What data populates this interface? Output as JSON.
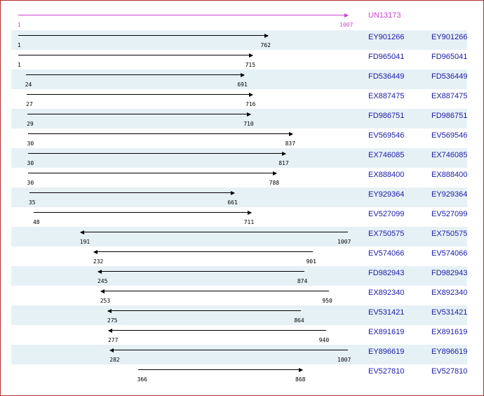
{
  "colors": {
    "query": "#cc44cc",
    "hit_arrow": "#000000",
    "label": "#1a1aa8",
    "row_shade": "#e6f1f6",
    "border": "#b03030"
  },
  "scale_max": 1007,
  "query": {
    "id": "UN13173",
    "start": "1",
    "end": "1007"
  },
  "hits": [
    {
      "id": "EY901266",
      "id2": "EY901266",
      "start": "1",
      "end": "762",
      "direction": "forward"
    },
    {
      "id": "FD965041",
      "id2": "FD965041",
      "start": "1",
      "end": "715",
      "direction": "forward"
    },
    {
      "id": "FD536449",
      "id2": "FD536449",
      "start": "24",
      "end": "691",
      "direction": "forward"
    },
    {
      "id": "EX887475",
      "id2": "EX887475",
      "start": "27",
      "end": "716",
      "direction": "forward"
    },
    {
      "id": "FD986751",
      "id2": "FD986751",
      "start": "29",
      "end": "710",
      "direction": "forward"
    },
    {
      "id": "EV569546",
      "id2": "EV569546",
      "start": "30",
      "end": "837",
      "direction": "forward"
    },
    {
      "id": "EX746085",
      "id2": "EX746085",
      "start": "30",
      "end": "817",
      "direction": "forward"
    },
    {
      "id": "EX888400",
      "id2": "EX888400",
      "start": "30",
      "end": "788",
      "direction": "forward"
    },
    {
      "id": "EY929364",
      "id2": "EY929364",
      "start": "35",
      "end": "661",
      "direction": "forward"
    },
    {
      "id": "EV527099",
      "id2": "EV527099",
      "start": "48",
      "end": "711",
      "direction": "forward"
    },
    {
      "id": "EX750575",
      "id2": "EX750575",
      "start": "191",
      "end": "1007",
      "direction": "reverse"
    },
    {
      "id": "EV574066",
      "id2": "EV574066",
      "start": "232",
      "end": "901",
      "direction": "reverse"
    },
    {
      "id": "FD982943",
      "id2": "FD982943",
      "start": "245",
      "end": "874",
      "direction": "reverse"
    },
    {
      "id": "EX892340",
      "id2": "EX892340",
      "start": "253",
      "end": "950",
      "direction": "reverse"
    },
    {
      "id": "EV531421",
      "id2": "EV531421",
      "start": "275",
      "end": "864",
      "direction": "reverse"
    },
    {
      "id": "EX891619",
      "id2": "EX891619",
      "start": "277",
      "end": "940",
      "direction": "reverse"
    },
    {
      "id": "EY896619",
      "id2": "EY896619",
      "start": "282",
      "end": "1007",
      "direction": "reverse"
    },
    {
      "id": "EV527810",
      "id2": "EV527810",
      "start": "366",
      "end": "868",
      "direction": "forward"
    }
  ]
}
